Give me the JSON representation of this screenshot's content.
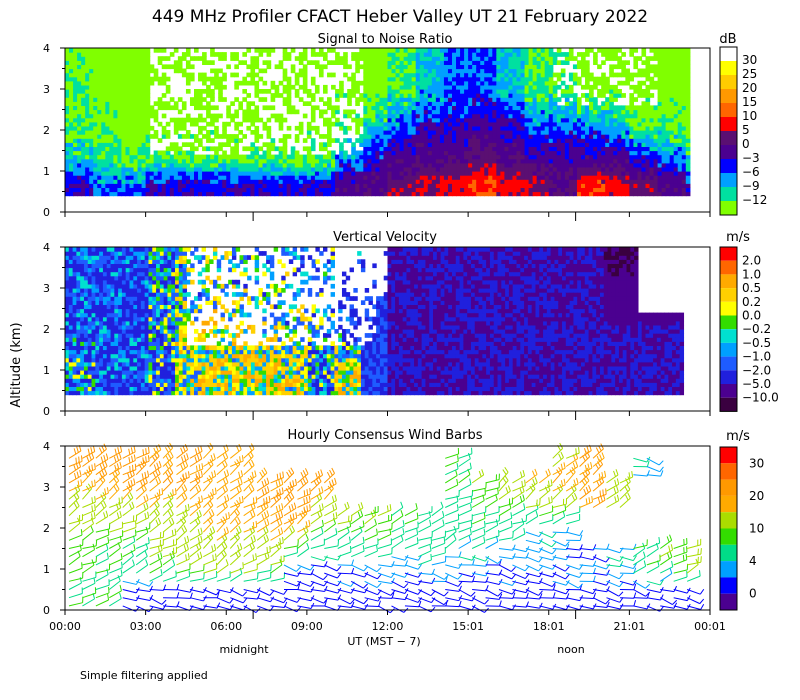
{
  "chart_data": [
    {
      "type": "heatmap",
      "figure_title": "449 MHz Profiler CFACT Heber Valley UT 21 February 2022",
      "title": "Signal to Noise Ratio",
      "ylabel": "Altitude (km)",
      "ylim": [
        0,
        4
      ],
      "yticks": [
        "0",
        "1",
        "2",
        "3",
        "4"
      ],
      "colorbar_unit": "dB",
      "colorbar_labels": [
        "30",
        "25",
        "20",
        "15",
        "10",
        "5",
        "0",
        "−3",
        "−6",
        "−9",
        "−12"
      ],
      "colorbar_colors": [
        "#ffffff",
        "#ffff00",
        "#ffcc00",
        "#ff9900",
        "#ff6600",
        "#ff0000",
        "#5a0f72",
        "#4b0090",
        "#0000ff",
        "#00a0ff",
        "#00e0a0",
        "#80ff00"
      ],
      "x_range_hours": [
        0,
        24
      ],
      "data_altitude_range_km": [
        0.4,
        4.0
      ],
      "description_rows": [
        {
          "altitude_km": 0.6,
          "snr_db_by_hour": [
            0,
            -3,
            -3,
            0,
            0,
            0,
            0,
            0,
            0,
            0,
            3,
            5,
            8,
            10,
            12,
            15,
            12,
            10,
            5,
            14,
            12,
            8,
            4,
            0
          ]
        },
        {
          "altitude_km": 1.2,
          "snr_db_by_hour": [
            -6,
            -9,
            -9,
            -9,
            -9,
            -9,
            -9,
            -9,
            -9,
            -9,
            -3,
            0,
            3,
            5,
            5,
            8,
            5,
            3,
            2,
            3,
            3,
            0,
            -3,
            -6
          ]
        },
        {
          "altitude_km": 2.0,
          "snr_db_by_hour": [
            -9,
            -10,
            -12,
            -12,
            -12,
            -12,
            -12,
            -12,
            -12,
            -12,
            -9,
            -6,
            -3,
            0,
            0,
            2,
            0,
            -3,
            -3,
            -3,
            -6,
            -9,
            -9,
            -12
          ]
        },
        {
          "altitude_km": 3.0,
          "snr_db_by_hour": [
            -10,
            -12,
            -12,
            -12,
            -12,
            -12,
            -12,
            -12,
            -12,
            -12,
            -12,
            -12,
            -9,
            -6,
            -3,
            -3,
            -6,
            -9,
            -9,
            -12,
            -12,
            -12,
            -12,
            -12
          ]
        }
      ]
    },
    {
      "type": "heatmap",
      "title": "Vertical Velocity",
      "ylim": [
        0,
        4
      ],
      "yticks": [
        "0",
        "1",
        "2",
        "3",
        "4"
      ],
      "colorbar_unit": "m/s",
      "colorbar_labels": [
        "2.0",
        "1.0",
        "0.5",
        "0.2",
        "0.0",
        "−0.2",
        "−0.5",
        "−1.0",
        "−2.0",
        "−5.0",
        "−10.0"
      ],
      "colorbar_colors": [
        "#ff0000",
        "#ff6600",
        "#ffaa00",
        "#ffd000",
        "#ffff00",
        "#33dd00",
        "#00e0d0",
        "#00a0ff",
        "#1e5cff",
        "#2020dd",
        "#4b0090",
        "#3a0040"
      ],
      "x_range_hours": [
        0,
        24
      ],
      "data_altitude_range_km": [
        0.4,
        4.0
      ],
      "description_rows": [
        {
          "altitude_km": 0.8,
          "w_ms_by_hour": [
            -0.5,
            -1.0,
            -1.0,
            -0.5,
            0.2,
            0.5,
            0.5,
            0.5,
            0.2,
            -0.5,
            0.5,
            -1.0,
            -2.0,
            -2.0,
            -2.0,
            -2.0,
            -2.0,
            -2.0,
            -2.0,
            -2.0,
            -2.0,
            -2.0,
            -2.0,
            -2.0
          ]
        },
        {
          "altitude_km": 2.0,
          "w_ms_by_hour": [
            -1.0,
            -1.0,
            -1.0,
            -0.5,
            0.0,
            0.2,
            0.2,
            0.2,
            -0.2,
            -0.5,
            -1.0,
            -1.0,
            -2.0,
            -2.0,
            -2.0,
            -2.0,
            -2.0,
            -2.0,
            -2.0,
            -2.0,
            -2.0,
            -2.0,
            -2.0,
            -5.0
          ]
        },
        {
          "altitude_km": 3.4,
          "w_ms_by_hour": [
            -1.0,
            -1.0,
            -1.0,
            -0.5,
            -0.2,
            -0.2,
            -0.5,
            -0.5,
            -0.5,
            -0.5,
            -1.0,
            -1.0,
            -2.0,
            -2.0,
            -2.0,
            -2.0,
            -2.0,
            -2.0,
            -2.0,
            -2.0,
            -5.0,
            -5.0,
            -5.0,
            -5.0
          ]
        }
      ]
    },
    {
      "type": "scatter",
      "title": "Hourly Consensus Wind Barbs",
      "ylim": [
        0,
        4
      ],
      "yticks": [
        "0",
        "1",
        "2",
        "3",
        "4"
      ],
      "colorbar_unit": "m/s",
      "colorbar_labels": [
        "30",
        "20",
        "10",
        "4",
        "0"
      ],
      "colorbar_colors": [
        "#ff0000",
        "#ff6600",
        "#ff9900",
        "#ffaa00",
        "#aadd00",
        "#33dd00",
        "#00dd88",
        "#00a0ff",
        "#0000ff",
        "#4b0090"
      ],
      "x_range_hours": [
        0,
        24
      ],
      "speed_ms_by_altitude_and_period": [
        {
          "altitude_km": 0.5,
          "speeds": [
            10,
            10,
            3,
            3,
            3,
            3,
            3,
            3,
            3,
            3,
            3,
            3,
            3,
            3,
            3,
            3,
            3,
            3,
            3,
            3,
            3,
            3,
            3,
            3
          ]
        },
        {
          "altitude_km": 1.0,
          "speeds": [
            10,
            9,
            8,
            12,
            12,
            14,
            14,
            12,
            3,
            3,
            4,
            4,
            4,
            6,
            4,
            4,
            4,
            4,
            4,
            4,
            6,
            10,
            12,
            14
          ]
        },
        {
          "altitude_km": 2.0,
          "speeds": [
            12,
            12,
            12,
            14,
            16,
            18,
            18,
            20,
            20,
            12,
            12,
            12,
            10,
            9,
            9,
            9,
            8,
            6,
            5,
            0,
            0,
            0,
            0,
            0
          ]
        },
        {
          "altitude_km": 3.0,
          "speeds": [
            20,
            20,
            22,
            20,
            20,
            18,
            18,
            20,
            24,
            22,
            0,
            0,
            0,
            0,
            10,
            12,
            16,
            18,
            20,
            20,
            16,
            0,
            0,
            0
          ]
        },
        {
          "altitude_km": 3.6,
          "speeds": [
            22,
            22,
            22,
            20,
            20,
            18,
            18,
            0,
            0,
            0,
            0,
            0,
            0,
            0,
            10,
            0,
            0,
            0,
            16,
            20,
            0,
            6,
            0,
            0
          ]
        }
      ]
    }
  ],
  "xaxis": {
    "ticks": [
      "00:00",
      "03:00",
      "06:00",
      "09:00",
      "12:00",
      "15:01",
      "18:01",
      "21:01",
      "00:01"
    ],
    "label": "UT  (MST − 7)",
    "midnight_label": "midnight",
    "noon_label": "noon"
  },
  "footnote": "Simple filtering applied",
  "ui_names": {
    "figure": "Wind profiler time-height plots",
    "panel_snr": "Signal to Noise Ratio panel",
    "panel_vv": "Vertical Velocity panel",
    "panel_barbs": "Wind Barbs panel"
  }
}
